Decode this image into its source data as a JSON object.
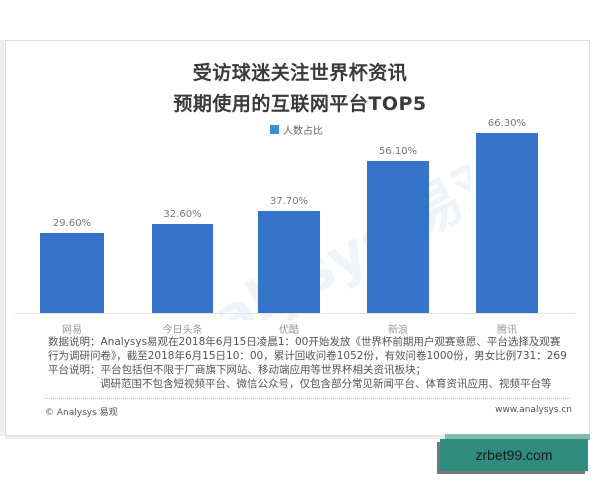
{
  "title": {
    "line1": "受访球迷关注世界杯资讯",
    "line2": "预期使用的互联网平台TOP5"
  },
  "legend": {
    "label": "人数占比",
    "color": "#3b8fd4"
  },
  "watermark": {
    "text": "Analysys 易观"
  },
  "chart_data": {
    "type": "bar",
    "title": "受访球迷关注世界杯资讯预期使用的互联网平台TOP5",
    "categories": [
      "网易",
      "今日头条",
      "优酷",
      "新浪",
      "腾讯"
    ],
    "series": [
      {
        "name": "人数占比",
        "values": [
          29.6,
          32.6,
          37.7,
          56.1,
          66.3
        ],
        "color": "#3574c8"
      }
    ],
    "value_labels": [
      "29.60%",
      "32.60%",
      "37.70%",
      "56.10%",
      "66.30%"
    ],
    "xlabel": "",
    "ylabel": "",
    "ylim": [
      0,
      70
    ],
    "grid": false,
    "legend_position": "top"
  },
  "notes": {
    "line1": "数据说明：Analysys易观在2018年6月15日凌晨1：00开始发放《世界杯前期用户观赛意愿、平台选择及观赛",
    "line2": "行为调研问卷》，截至2018年6月15日10：00，累计回收问卷1052份，有效问卷1000份，男女比例731：269",
    "line3": "平台说明：平台包括但不限于厂商旗下网站、移动端应用等世界杯相关资讯板块；",
    "line4": "调研范围不包含短视频平台、微信公众号，仅包含部分常见新闻平台、体育资讯应用、视频平台等"
  },
  "footer": {
    "copyright": "© Analysys 易观",
    "website": "www.analysys.cn"
  },
  "ad": {
    "text": "zrbet99.com"
  }
}
